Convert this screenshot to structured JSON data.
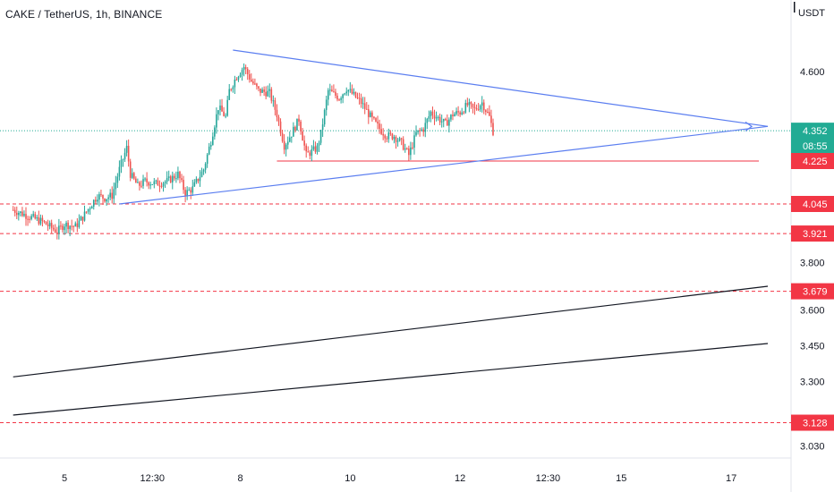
{
  "header": {
    "symbol_line": "CAKE / TetherUS, 1h, BINANCE",
    "currency": "USDT"
  },
  "chart_data": {
    "type": "candlestick",
    "symbol": "CAKE / TetherUS",
    "interval": "1h",
    "exchange": "BINANCE",
    "ylim": [
      2.98,
      4.9
    ],
    "y_ticks": [
      {
        "value": 4.6,
        "label": "4.600"
      },
      {
        "value": 3.8,
        "label": "3.800"
      },
      {
        "value": 3.6,
        "label": "3.600"
      },
      {
        "value": 3.45,
        "label": "3.450"
      },
      {
        "value": 3.3,
        "label": "3.300"
      },
      {
        "value": 3.03,
        "label": "3.030"
      }
    ],
    "x_ticks": [
      {
        "t": 0,
        "label": "5"
      },
      {
        "t": 24,
        "label": "12:30"
      },
      {
        "t": 48,
        "label": "8"
      },
      {
        "t": 78,
        "label": "10"
      },
      {
        "t": 108,
        "label": "12"
      },
      {
        "t": 132,
        "label": "12:30"
      },
      {
        "t": 152,
        "label": "15"
      },
      {
        "t": 182,
        "label": "17"
      }
    ],
    "price_labels": [
      {
        "value": 4.352,
        "label": "4.352",
        "color": "#22ab94"
      },
      {
        "value": 4.225,
        "label": "4.225",
        "color": "#f23645"
      },
      {
        "value": 4.045,
        "label": "4.045",
        "color": "#f23645"
      },
      {
        "value": 3.921,
        "label": "3.921",
        "color": "#f23645"
      },
      {
        "value": 3.679,
        "label": "3.679",
        "color": "#f23645"
      },
      {
        "value": 3.128,
        "label": "3.128",
        "color": "#f23645"
      }
    ],
    "countdown": "08:55",
    "last_price": 4.352,
    "horizontal_levels": [
      {
        "value": 4.045,
        "style": "dashed",
        "color": "#f23645"
      },
      {
        "value": 3.921,
        "style": "dashed",
        "color": "#f23645"
      },
      {
        "value": 3.679,
        "style": "dashed",
        "color": "#f23645"
      },
      {
        "value": 3.128,
        "style": "dashed",
        "color": "#f23645"
      }
    ],
    "support_segment": {
      "t1": 58,
      "t2": 192,
      "value": 4.225,
      "color": "#f23645"
    },
    "trendlines": [
      {
        "name": "upper",
        "t1": 46,
        "v1": 4.69,
        "t2": 192,
        "v2": 4.37,
        "color": "#5b7ef0"
      },
      {
        "name": "lower",
        "t1": 15,
        "v1": 4.045,
        "t2": 192,
        "v2": 4.37,
        "color": "#5b7ef0"
      },
      {
        "name": "channel-top",
        "t1": -14,
        "v1": 3.32,
        "t2": 192,
        "v2": 3.7,
        "color": "#131722"
      },
      {
        "name": "channel-bottom",
        "t1": -14,
        "v1": 3.16,
        "t2": 192,
        "v2": 3.46,
        "color": "#131722"
      }
    ],
    "close_path": [
      [
        -14,
        4.02
      ],
      [
        -6,
        3.97
      ],
      [
        -2,
        3.93
      ],
      [
        0,
        3.96
      ],
      [
        3,
        3.95
      ],
      [
        5,
        3.99
      ],
      [
        9,
        4.08
      ],
      [
        11,
        4.07
      ],
      [
        13,
        4.08
      ],
      [
        15,
        4.19
      ],
      [
        17,
        4.28
      ],
      [
        18,
        4.17
      ],
      [
        20,
        4.12
      ],
      [
        22,
        4.14
      ],
      [
        25,
        4.13
      ],
      [
        28,
        4.14
      ],
      [
        31,
        4.17
      ],
      [
        33,
        4.09
      ],
      [
        35,
        4.11
      ],
      [
        38,
        4.19
      ],
      [
        40,
        4.31
      ],
      [
        42,
        4.45
      ],
      [
        44,
        4.41
      ],
      [
        45,
        4.52
      ],
      [
        47,
        4.58
      ],
      [
        49,
        4.62
      ],
      [
        51,
        4.56
      ],
      [
        53,
        4.52
      ],
      [
        56,
        4.51
      ],
      [
        58,
        4.42
      ],
      [
        60,
        4.29
      ],
      [
        62,
        4.34
      ],
      [
        64,
        4.4
      ],
      [
        66,
        4.25
      ],
      [
        69,
        4.28
      ],
      [
        70,
        4.34
      ],
      [
        72,
        4.52
      ],
      [
        75,
        4.49
      ],
      [
        77,
        4.53
      ],
      [
        79,
        4.5
      ],
      [
        81,
        4.47
      ],
      [
        84,
        4.4
      ],
      [
        86,
        4.36
      ],
      [
        88,
        4.33
      ],
      [
        90,
        4.33
      ],
      [
        92,
        4.3
      ],
      [
        94,
        4.25
      ],
      [
        96,
        4.34
      ],
      [
        98,
        4.36
      ],
      [
        100,
        4.43
      ],
      [
        104,
        4.38
      ],
      [
        106,
        4.42
      ],
      [
        108,
        4.43
      ],
      [
        110,
        4.46
      ],
      [
        112,
        4.44
      ],
      [
        114,
        4.47
      ],
      [
        116,
        4.41
      ],
      [
        117,
        4.35
      ]
    ]
  }
}
